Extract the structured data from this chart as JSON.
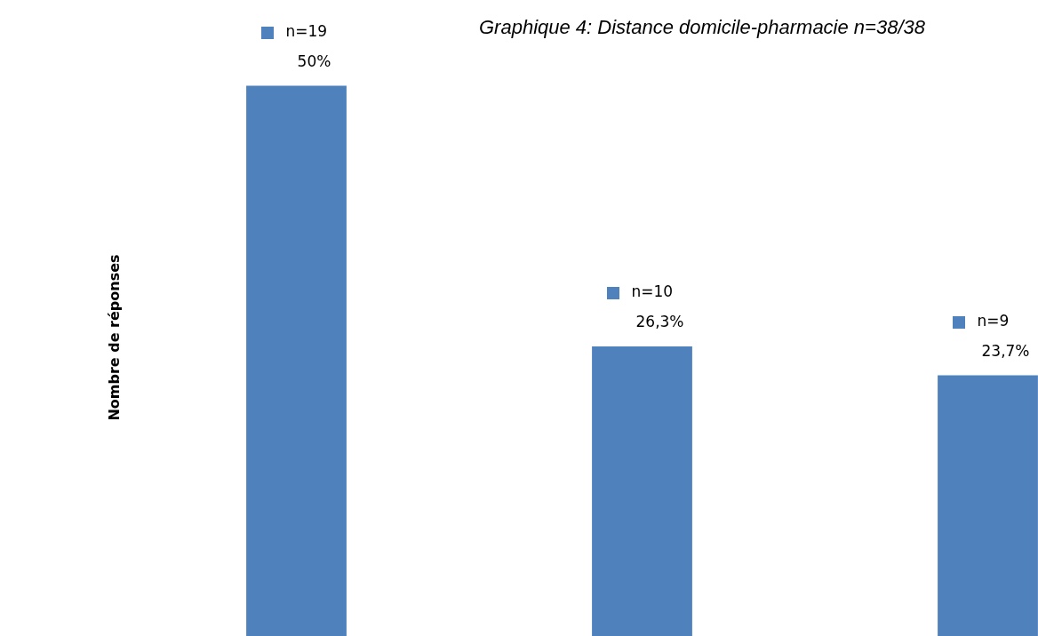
{
  "chart_data": {
    "type": "bar",
    "title": "Graphique 4: Distance domicile-pharmacie n=38/38",
    "ylabel": "Nombre de réponses",
    "categories": [
      null,
      null,
      null
    ],
    "series": [
      {
        "color": "#4f81bd",
        "values": [
          19,
          10,
          9
        ],
        "value_labels": [
          "n=19\n50%",
          "n=10\n26,3%",
          "n=9\n23,7%"
        ]
      }
    ],
    "tick_labels": false,
    "legend": false
  }
}
